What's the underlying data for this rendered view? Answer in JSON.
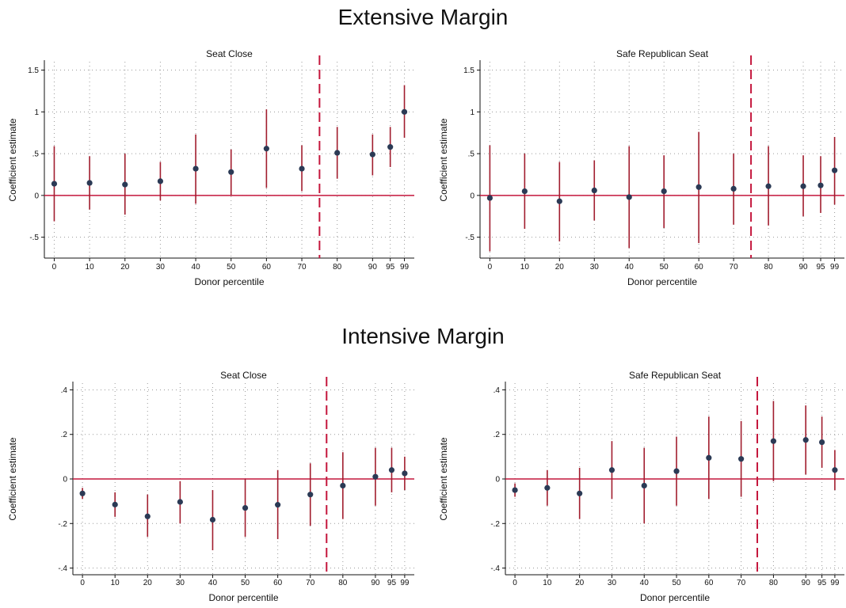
{
  "sections": {
    "extensive": {
      "title": "Extensive Margin"
    },
    "intensive": {
      "title": "Intensive Margin"
    }
  },
  "colors": {
    "point": "#2b3a55",
    "ci": "#a11d2e",
    "zero_line": "#c4163c",
    "cutoff_line": "#c4163c",
    "grid": "#9a9a9a"
  },
  "chart_data": [
    {
      "type": "scatter",
      "section": "Extensive Margin",
      "title": "Seat Close",
      "xlabel": "Donor percentile",
      "ylabel": "Coefficient estimate",
      "x_ticks": [
        0,
        10,
        20,
        30,
        40,
        50,
        60,
        70,
        80,
        90,
        95,
        99
      ],
      "x_tick_labels": [
        "0",
        "10",
        "20",
        "30",
        "40",
        "50",
        "60",
        "70",
        "80",
        "90",
        "95",
        "99"
      ],
      "y_ticks": [
        -0.5,
        0,
        0.5,
        1,
        1.5
      ],
      "y_tick_labels": [
        "-.5",
        "0",
        ".5",
        "1",
        "1.5"
      ],
      "ylim": [
        -0.75,
        1.6
      ],
      "xlim": [
        -1,
        100
      ],
      "reference_line_y": 0,
      "cutoff_line_x": 75,
      "grid": true,
      "points": [
        {
          "x": 0,
          "y": 0.14,
          "lo": -0.31,
          "hi": 0.59
        },
        {
          "x": 10,
          "y": 0.15,
          "lo": -0.17,
          "hi": 0.47
        },
        {
          "x": 20,
          "y": 0.13,
          "lo": -0.23,
          "hi": 0.5
        },
        {
          "x": 30,
          "y": 0.17,
          "lo": -0.06,
          "hi": 0.4
        },
        {
          "x": 40,
          "y": 0.32,
          "lo": -0.1,
          "hi": 0.73
        },
        {
          "x": 50,
          "y": 0.28,
          "lo": 0.0,
          "hi": 0.55
        },
        {
          "x": 60,
          "y": 0.56,
          "lo": 0.09,
          "hi": 1.03
        },
        {
          "x": 70,
          "y": 0.32,
          "lo": 0.05,
          "hi": 0.6
        },
        {
          "x": 80,
          "y": 0.51,
          "lo": 0.2,
          "hi": 0.82
        },
        {
          "x": 90,
          "y": 0.49,
          "lo": 0.24,
          "hi": 0.73
        },
        {
          "x": 95,
          "y": 0.58,
          "lo": 0.34,
          "hi": 0.82
        },
        {
          "x": 99,
          "y": 1.0,
          "lo": 0.69,
          "hi": 1.32
        }
      ]
    },
    {
      "type": "scatter",
      "section": "Extensive Margin",
      "title": "Safe Republican Seat",
      "xlabel": "Donor percentile",
      "ylabel": "Coefficient estimate",
      "x_ticks": [
        0,
        10,
        20,
        30,
        40,
        50,
        60,
        70,
        80,
        90,
        95,
        99
      ],
      "x_tick_labels": [
        "0",
        "10",
        "20",
        "30",
        "40",
        "50",
        "60",
        "70",
        "80",
        "90",
        "95",
        "99"
      ],
      "y_ticks": [
        -0.5,
        0,
        0.5,
        1,
        1.5
      ],
      "y_tick_labels": [
        "-.5",
        "0",
        ".5",
        "1",
        "1.5"
      ],
      "ylim": [
        -0.75,
        1.6
      ],
      "xlim": [
        -1,
        100
      ],
      "reference_line_y": 0,
      "cutoff_line_x": 75,
      "grid": true,
      "points": [
        {
          "x": 0,
          "y": -0.03,
          "lo": -0.67,
          "hi": 0.6
        },
        {
          "x": 10,
          "y": 0.05,
          "lo": -0.4,
          "hi": 0.5
        },
        {
          "x": 20,
          "y": -0.07,
          "lo": -0.55,
          "hi": 0.4
        },
        {
          "x": 30,
          "y": 0.06,
          "lo": -0.3,
          "hi": 0.42
        },
        {
          "x": 40,
          "y": -0.02,
          "lo": -0.63,
          "hi": 0.59
        },
        {
          "x": 50,
          "y": 0.05,
          "lo": -0.39,
          "hi": 0.48
        },
        {
          "x": 60,
          "y": 0.1,
          "lo": -0.57,
          "hi": 0.76
        },
        {
          "x": 70,
          "y": 0.08,
          "lo": -0.35,
          "hi": 0.5
        },
        {
          "x": 80,
          "y": 0.11,
          "lo": -0.36,
          "hi": 0.59
        },
        {
          "x": 90,
          "y": 0.11,
          "lo": -0.25,
          "hi": 0.48
        },
        {
          "x": 95,
          "y": 0.12,
          "lo": -0.21,
          "hi": 0.47
        },
        {
          "x": 99,
          "y": 0.3,
          "lo": -0.11,
          "hi": 0.7
        }
      ]
    },
    {
      "type": "scatter",
      "section": "Intensive Margin",
      "title": "Seat Close",
      "xlabel": "Donor percentile",
      "ylabel": "Coefficient estimate",
      "x_ticks": [
        0,
        10,
        20,
        30,
        40,
        50,
        60,
        70,
        80,
        90,
        95,
        99
      ],
      "x_tick_labels": [
        "0",
        "10",
        "20",
        "30",
        "40",
        "50",
        "60",
        "70",
        "80",
        "90",
        "95",
        "99"
      ],
      "y_ticks": [
        -0.4,
        -0.2,
        0,
        0.2,
        0.4
      ],
      "y_tick_labels": [
        "-.4",
        "-.2",
        "0",
        ".2",
        ".4"
      ],
      "ylim": [
        -0.43,
        0.43
      ],
      "xlim": [
        -1,
        100
      ],
      "reference_line_y": 0,
      "cutoff_line_x": 75,
      "grid": true,
      "points": [
        {
          "x": 0,
          "y": -0.065,
          "lo": -0.09,
          "hi": -0.04
        },
        {
          "x": 10,
          "y": -0.115,
          "lo": -0.17,
          "hi": -0.06
        },
        {
          "x": 20,
          "y": -0.168,
          "lo": -0.26,
          "hi": -0.07
        },
        {
          "x": 30,
          "y": -0.103,
          "lo": -0.2,
          "hi": -0.01
        },
        {
          "x": 40,
          "y": -0.183,
          "lo": -0.32,
          "hi": -0.05
        },
        {
          "x": 50,
          "y": -0.13,
          "lo": -0.26,
          "hi": 0.0
        },
        {
          "x": 60,
          "y": -0.116,
          "lo": -0.27,
          "hi": 0.04
        },
        {
          "x": 70,
          "y": -0.07,
          "lo": -0.21,
          "hi": 0.07
        },
        {
          "x": 80,
          "y": -0.03,
          "lo": -0.18,
          "hi": 0.12
        },
        {
          "x": 90,
          "y": 0.01,
          "lo": -0.12,
          "hi": 0.14
        },
        {
          "x": 95,
          "y": 0.04,
          "lo": -0.06,
          "hi": 0.14
        },
        {
          "x": 99,
          "y": 0.025,
          "lo": -0.05,
          "hi": 0.1
        }
      ]
    },
    {
      "type": "scatter",
      "section": "Intensive Margin",
      "title": "Safe Republican Seat",
      "xlabel": "Donor percentile",
      "ylabel": "Coefficient estimate",
      "x_ticks": [
        0,
        10,
        20,
        30,
        40,
        50,
        60,
        70,
        80,
        90,
        95,
        99
      ],
      "x_tick_labels": [
        "0",
        "10",
        "20",
        "30",
        "40",
        "50",
        "60",
        "70",
        "80",
        "90",
        "95",
        "99"
      ],
      "y_ticks": [
        -0.4,
        -0.2,
        0,
        0.2,
        0.4
      ],
      "y_tick_labels": [
        "-.4",
        "-.2",
        "0",
        ".2",
        ".4"
      ],
      "ylim": [
        -0.43,
        0.43
      ],
      "xlim": [
        -1,
        100
      ],
      "reference_line_y": 0,
      "cutoff_line_x": 75,
      "grid": true,
      "points": [
        {
          "x": 0,
          "y": -0.05,
          "lo": -0.08,
          "hi": -0.02
        },
        {
          "x": 10,
          "y": -0.04,
          "lo": -0.12,
          "hi": 0.04
        },
        {
          "x": 20,
          "y": -0.065,
          "lo": -0.18,
          "hi": 0.05
        },
        {
          "x": 30,
          "y": 0.04,
          "lo": -0.09,
          "hi": 0.17
        },
        {
          "x": 40,
          "y": -0.03,
          "lo": -0.2,
          "hi": 0.14
        },
        {
          "x": 50,
          "y": 0.035,
          "lo": -0.12,
          "hi": 0.19
        },
        {
          "x": 60,
          "y": 0.095,
          "lo": -0.09,
          "hi": 0.28
        },
        {
          "x": 70,
          "y": 0.09,
          "lo": -0.08,
          "hi": 0.26
        },
        {
          "x": 80,
          "y": 0.17,
          "lo": -0.01,
          "hi": 0.35
        },
        {
          "x": 90,
          "y": 0.175,
          "lo": 0.02,
          "hi": 0.33
        },
        {
          "x": 95,
          "y": 0.165,
          "lo": 0.05,
          "hi": 0.28
        },
        {
          "x": 99,
          "y": 0.04,
          "lo": -0.05,
          "hi": 0.13
        }
      ]
    }
  ]
}
